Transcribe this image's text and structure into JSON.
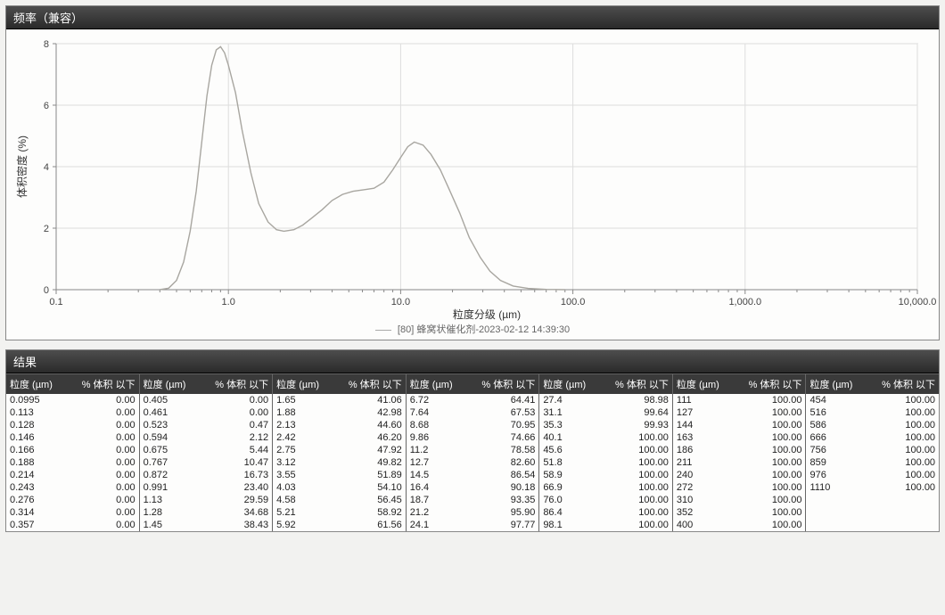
{
  "chart": {
    "panel_title": "频率（兼容）",
    "type": "line",
    "xlabel": "粒度分级 (µm)",
    "ylabel": "体积密度 (%)",
    "legend_text": "[80] 蜂窝状催化剂-2023-02-12 14:39:30",
    "x_scale": "log",
    "xlim": [
      0.1,
      10000
    ],
    "ylim": [
      0,
      8
    ],
    "ytick_step": 2,
    "x_ticks": [
      0.1,
      1.0,
      10.0,
      100.0,
      1000.0,
      10000.0
    ],
    "x_tick_labels": [
      "0.1",
      "1.0",
      "10.0",
      "100.0",
      "1,000.0",
      "10,000.0"
    ],
    "line_color": "#a8a6a0",
    "line_width": 1.4,
    "grid_color": "#dddddd",
    "background_color": "#fdfdfc",
    "series": {
      "x": [
        0.4,
        0.45,
        0.5,
        0.55,
        0.6,
        0.65,
        0.7,
        0.75,
        0.8,
        0.85,
        0.9,
        0.95,
        1.0,
        1.1,
        1.2,
        1.35,
        1.5,
        1.7,
        1.9,
        2.1,
        2.4,
        2.7,
        3.0,
        3.5,
        4.0,
        4.6,
        5.3,
        6.1,
        7.0,
        8.0,
        9.0,
        10.0,
        11.0,
        12.0,
        13.5,
        15.0,
        17.0,
        19.0,
        22.0,
        25.0,
        29.0,
        33.0,
        38.0,
        45.0,
        55.0,
        70.0,
        90.0
      ],
      "y": [
        0.0,
        0.05,
        0.3,
        0.9,
        1.9,
        3.2,
        4.8,
        6.3,
        7.3,
        7.8,
        7.9,
        7.7,
        7.3,
        6.4,
        5.2,
        3.8,
        2.8,
        2.2,
        1.95,
        1.9,
        1.95,
        2.1,
        2.3,
        2.6,
        2.9,
        3.1,
        3.2,
        3.25,
        3.3,
        3.5,
        3.9,
        4.3,
        4.65,
        4.8,
        4.7,
        4.4,
        3.9,
        3.3,
        2.5,
        1.7,
        1.05,
        0.6,
        0.3,
        0.12,
        0.04,
        0.01,
        0.0
      ]
    }
  },
  "results": {
    "panel_title": "结果",
    "col1": "粒度 (µm)",
    "col2": "% 体积 以下",
    "groups": [
      [
        [
          "0.0995",
          "0.00"
        ],
        [
          "0.113",
          "0.00"
        ],
        [
          "0.128",
          "0.00"
        ],
        [
          "0.146",
          "0.00"
        ],
        [
          "0.166",
          "0.00"
        ],
        [
          "0.188",
          "0.00"
        ],
        [
          "0.214",
          "0.00"
        ],
        [
          "0.243",
          "0.00"
        ],
        [
          "0.276",
          "0.00"
        ],
        [
          "0.314",
          "0.00"
        ],
        [
          "0.357",
          "0.00"
        ]
      ],
      [
        [
          "0.405",
          "0.00"
        ],
        [
          "0.461",
          "0.00"
        ],
        [
          "0.523",
          "0.47"
        ],
        [
          "0.594",
          "2.12"
        ],
        [
          "0.675",
          "5.44"
        ],
        [
          "0.767",
          "10.47"
        ],
        [
          "0.872",
          "16.73"
        ],
        [
          "0.991",
          "23.40"
        ],
        [
          "1.13",
          "29.59"
        ],
        [
          "1.28",
          "34.68"
        ],
        [
          "1.45",
          "38.43"
        ]
      ],
      [
        [
          "1.65",
          "41.06"
        ],
        [
          "1.88",
          "42.98"
        ],
        [
          "2.13",
          "44.60"
        ],
        [
          "2.42",
          "46.20"
        ],
        [
          "2.75",
          "47.92"
        ],
        [
          "3.12",
          "49.82"
        ],
        [
          "3.55",
          "51.89"
        ],
        [
          "4.03",
          "54.10"
        ],
        [
          "4.58",
          "56.45"
        ],
        [
          "5.21",
          "58.92"
        ],
        [
          "5.92",
          "61.56"
        ]
      ],
      [
        [
          "6.72",
          "64.41"
        ],
        [
          "7.64",
          "67.53"
        ],
        [
          "8.68",
          "70.95"
        ],
        [
          "9.86",
          "74.66"
        ],
        [
          "11.2",
          "78.58"
        ],
        [
          "12.7",
          "82.60"
        ],
        [
          "14.5",
          "86.54"
        ],
        [
          "16.4",
          "90.18"
        ],
        [
          "18.7",
          "93.35"
        ],
        [
          "21.2",
          "95.90"
        ],
        [
          "24.1",
          "97.77"
        ]
      ],
      [
        [
          "27.4",
          "98.98"
        ],
        [
          "31.1",
          "99.64"
        ],
        [
          "35.3",
          "99.93"
        ],
        [
          "40.1",
          "100.00"
        ],
        [
          "45.6",
          "100.00"
        ],
        [
          "51.8",
          "100.00"
        ],
        [
          "58.9",
          "100.00"
        ],
        [
          "66.9",
          "100.00"
        ],
        [
          "76.0",
          "100.00"
        ],
        [
          "86.4",
          "100.00"
        ],
        [
          "98.1",
          "100.00"
        ]
      ],
      [
        [
          "111",
          "100.00"
        ],
        [
          "127",
          "100.00"
        ],
        [
          "144",
          "100.00"
        ],
        [
          "163",
          "100.00"
        ],
        [
          "186",
          "100.00"
        ],
        [
          "211",
          "100.00"
        ],
        [
          "240",
          "100.00"
        ],
        [
          "272",
          "100.00"
        ],
        [
          "310",
          "100.00"
        ],
        [
          "352",
          "100.00"
        ],
        [
          "400",
          "100.00"
        ]
      ],
      [
        [
          "454",
          "100.00"
        ],
        [
          "516",
          "100.00"
        ],
        [
          "586",
          "100.00"
        ],
        [
          "666",
          "100.00"
        ],
        [
          "756",
          "100.00"
        ],
        [
          "859",
          "100.00"
        ],
        [
          "976",
          "100.00"
        ],
        [
          "1110",
          "100.00"
        ]
      ]
    ]
  }
}
